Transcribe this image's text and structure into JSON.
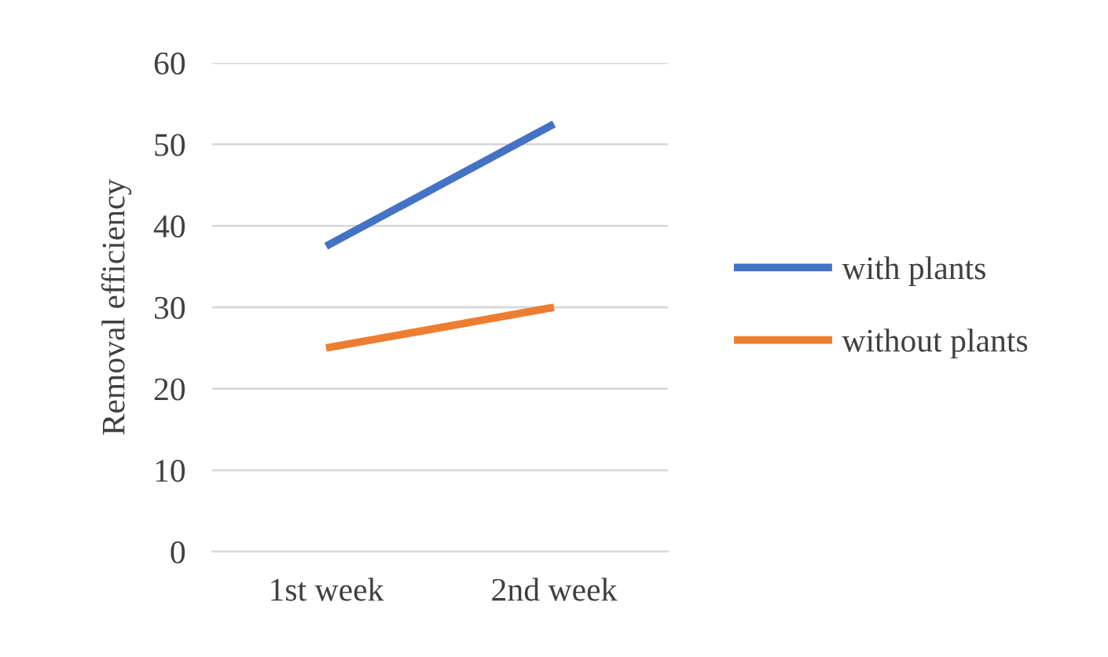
{
  "chart_data": {
    "type": "line",
    "ylabel": "Removal efficiency",
    "categories": [
      "1st week",
      "2nd week"
    ],
    "series": [
      {
        "name": "with plants",
        "color": "#4472c4",
        "values": [
          37.5,
          52.5
        ]
      },
      {
        "name": "without plants",
        "color": "#ed7d31",
        "values": [
          25,
          30
        ]
      }
    ],
    "ylim": [
      0,
      60
    ],
    "yticks": [
      0,
      10,
      20,
      30,
      40,
      50,
      60
    ],
    "grid": "y",
    "legend": "right",
    "marker": "none",
    "line_style": "solid"
  }
}
